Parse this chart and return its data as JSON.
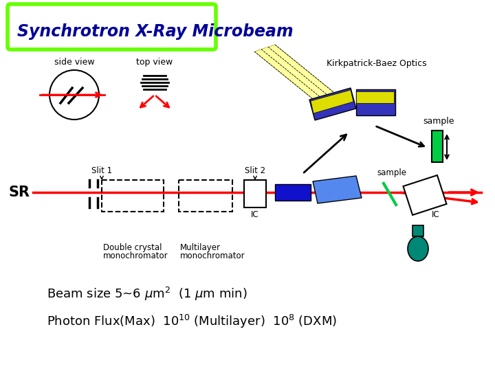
{
  "title": "Synchrotron X-Ray Microbeam",
  "title_color": "#000099",
  "title_box_color": "#66ff00",
  "bg_color": "#ffffff",
  "beam_color": "#ff0000",
  "text_color": "#000000",
  "blue_color": "#0000cc",
  "green_color": "#00cc44",
  "teal_color": "#008877",
  "side_view_label": "side view",
  "top_view_label": "top view",
  "kb_label": "Kirkpatrick-Baez Optics",
  "sample_label_top": "sample",
  "sample_label_beam": "sample",
  "slit1_label": "Slit 1",
  "slit2_label": "Slit 2",
  "sr_label": "SR",
  "ic_label1": "IC",
  "ic_label2": "IC",
  "dc_label1": "Double crystal",
  "dc_label2": "monochromator",
  "ml_label1": "Multilayer",
  "ml_label2": "monochromator"
}
